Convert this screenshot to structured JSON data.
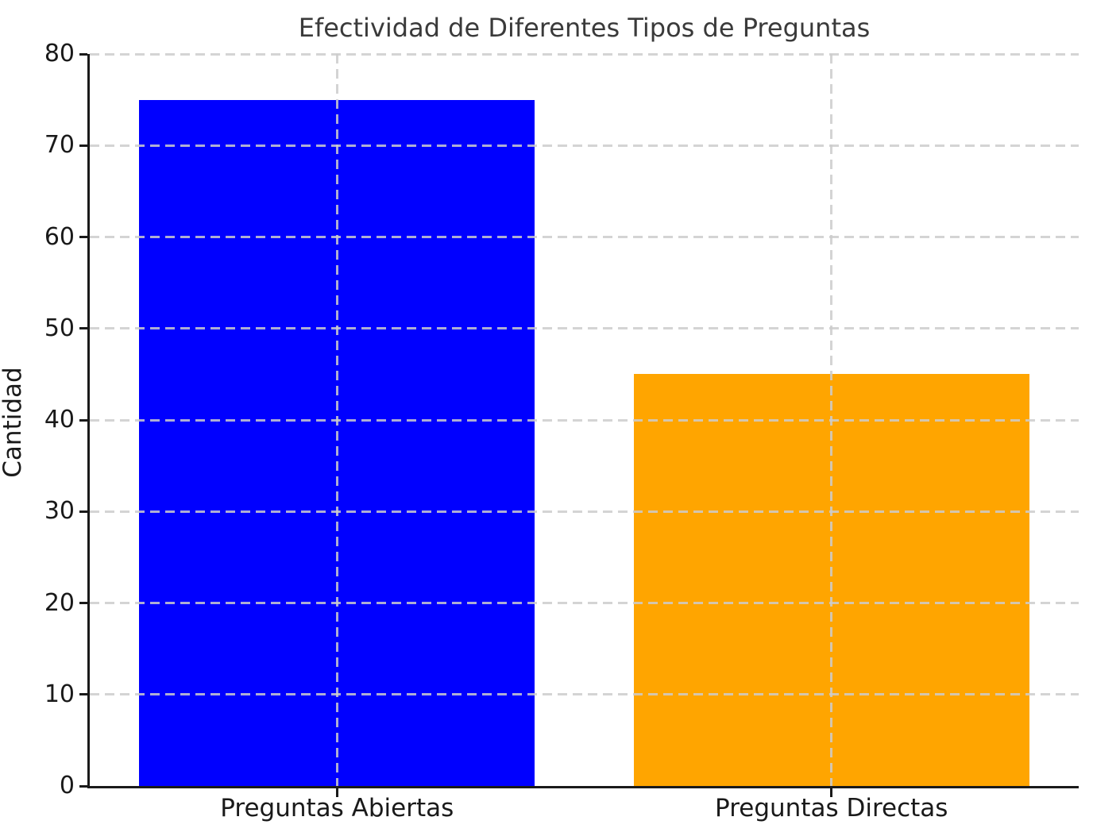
{
  "chart_data": {
    "type": "bar",
    "title": "Efectividad de Diferentes Tipos de Preguntas",
    "categories": [
      "Preguntas Abiertas",
      "Preguntas Directas"
    ],
    "values": [
      75,
      45
    ],
    "bar_colors": [
      "#0000ff",
      "#ffa500"
    ],
    "xlabel": "",
    "ylabel": "Cantidad",
    "ylim": [
      0,
      80
    ],
    "yticks": [
      0,
      10,
      20,
      30,
      40,
      50,
      60,
      70,
      80
    ],
    "bar_width_fraction": 0.4,
    "grid": "dashed, both axes, drawn over bars",
    "legend": "none",
    "colors": {
      "grid": "#cccccc",
      "axis": "#1a1a1a",
      "tick_text": "#1a1a1a",
      "title_text": "#3a3a3a",
      "background": "#ffffff"
    }
  }
}
